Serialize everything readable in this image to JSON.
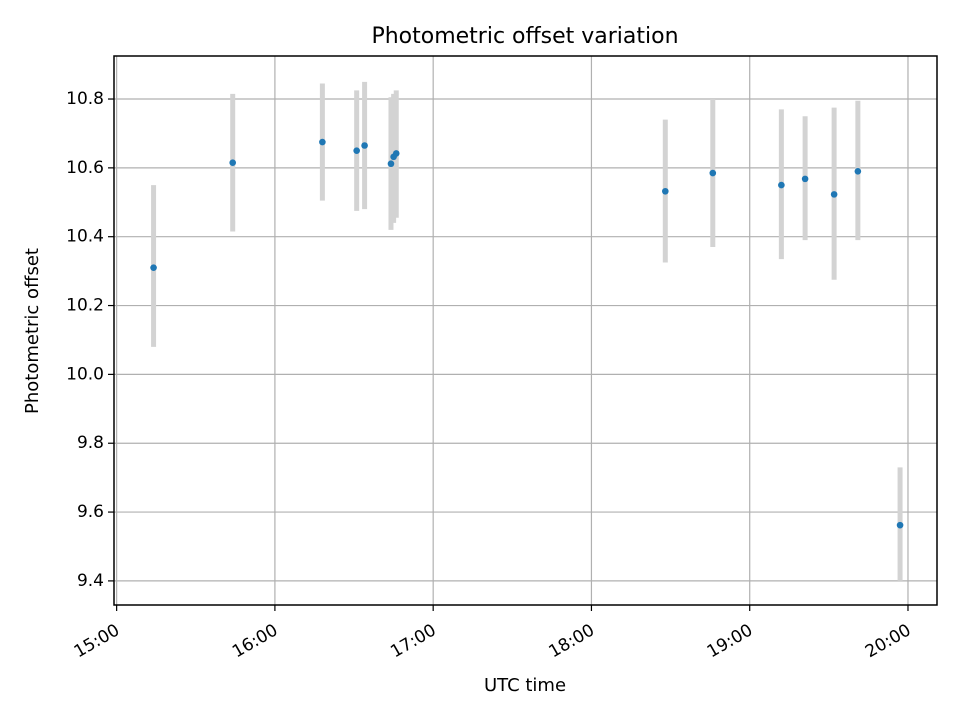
{
  "chart_data": {
    "type": "scatter",
    "title": "Photometric offset variation",
    "xlabel": "UTC time",
    "ylabel": "Photometric offset",
    "xlim": [
      "14:59",
      "20:11"
    ],
    "ylim": [
      9.33,
      10.925
    ],
    "x_ticks": [
      "15:00",
      "16:00",
      "17:00",
      "18:00",
      "19:00",
      "20:00"
    ],
    "y_ticks": [
      "9.4",
      "9.6",
      "9.8",
      "10.0",
      "10.2",
      "10.4",
      "10.6",
      "10.8"
    ],
    "grid": true,
    "marker_color": "#1f77b4",
    "errorbar_color": "#d3d3d3",
    "points": [
      {
        "time": "15:14",
        "value": 10.31,
        "low": 10.08,
        "high": 10.55
      },
      {
        "time": "15:44",
        "value": 10.615,
        "low": 10.415,
        "high": 10.815
      },
      {
        "time": "16:18",
        "value": 10.675,
        "low": 10.505,
        "high": 10.845
      },
      {
        "time": "16:31",
        "value": 10.65,
        "low": 10.475,
        "high": 10.825
      },
      {
        "time": "16:34",
        "value": 10.665,
        "low": 10.48,
        "high": 10.85
      },
      {
        "time": "16:44",
        "value": 10.612,
        "low": 10.42,
        "high": 10.805
      },
      {
        "time": "16:45",
        "value": 10.632,
        "low": 10.44,
        "high": 10.815
      },
      {
        "time": "16:46",
        "value": 10.642,
        "low": 10.455,
        "high": 10.825
      },
      {
        "time": "18:28",
        "value": 10.532,
        "low": 10.325,
        "high": 10.74
      },
      {
        "time": "18:46",
        "value": 10.585,
        "low": 10.37,
        "high": 10.8
      },
      {
        "time": "19:12",
        "value": 10.55,
        "low": 10.335,
        "high": 10.77
      },
      {
        "time": "19:21",
        "value": 10.568,
        "low": 10.39,
        "high": 10.75
      },
      {
        "time": "19:32",
        "value": 10.523,
        "low": 10.275,
        "high": 10.775
      },
      {
        "time": "19:41",
        "value": 10.59,
        "low": 10.39,
        "high": 10.795
      },
      {
        "time": "19:57",
        "value": 9.562,
        "low": 9.4,
        "high": 9.73
      }
    ]
  }
}
